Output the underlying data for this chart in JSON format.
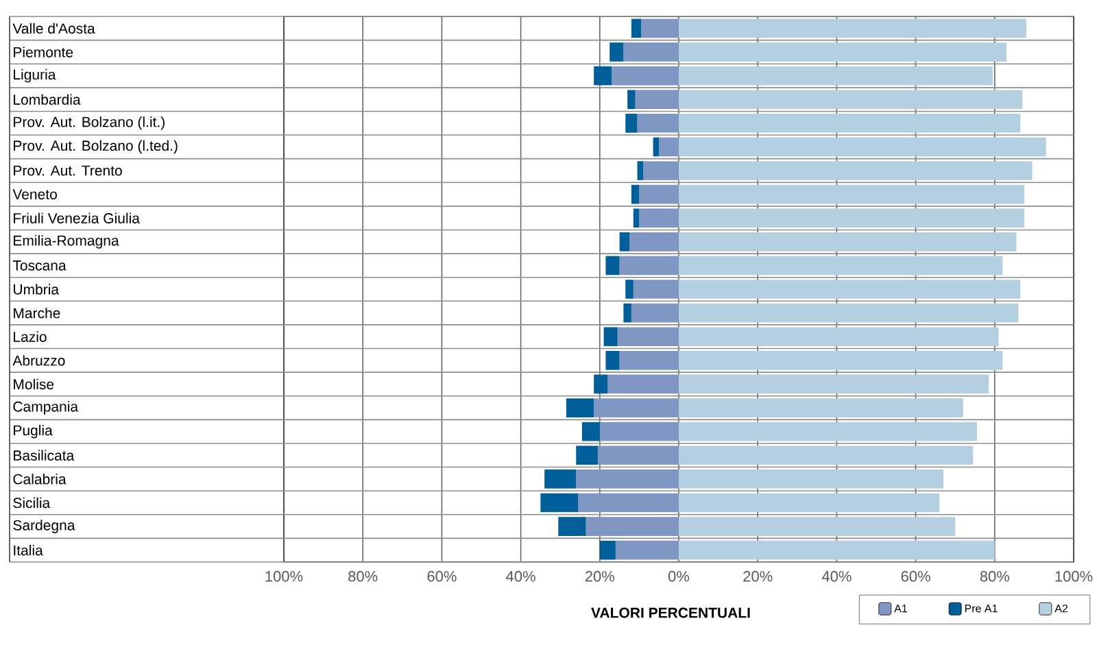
{
  "chart_data": {
    "type": "bar",
    "orientation": "horizontal",
    "stacked": true,
    "xlabel": "VALORI PERCENTUALI",
    "categories": [
      "Valle d'Aosta",
      "Piemonte",
      "Liguria",
      "Lombardia",
      "Prov. Aut. Bolzano (l.it.)",
      "Prov. Aut. Bolzano (l.ted.)",
      "Prov. Aut. Trento",
      "Veneto",
      "Friuli Venezia Giulia",
      "Emilia-Romagna",
      "Toscana",
      "Umbria",
      "Marche",
      "Lazio",
      "Abruzzo",
      "Molise",
      "Campania",
      "Puglia",
      "Basilicata",
      "Calabria",
      "Sicilia",
      "Sardegna",
      "Italia"
    ],
    "series": [
      {
        "name": "A1",
        "color": "#7f97c2",
        "values": [
          -9.5,
          -14,
          -17,
          -11,
          -10.5,
          -5,
          -9,
          -10,
          -10,
          -12.5,
          -15,
          -11.5,
          -12,
          -15.5,
          -15,
          -18,
          -21.5,
          -20,
          -20.5,
          -26,
          -25.5,
          -23.5,
          -16
        ]
      },
      {
        "name": "Pre A1",
        "color": "#005f98",
        "values": [
          -2.5,
          -3.5,
          -4.5,
          -2,
          -3,
          -1.5,
          -1.5,
          -2,
          -1.5,
          -2.5,
          -3.5,
          -2,
          -2,
          -3.5,
          -3.5,
          -3.5,
          -7,
          -4.5,
          -5.5,
          -8,
          -9.5,
          -7,
          -4
        ]
      },
      {
        "name": "A2",
        "color": "#b3cfe0",
        "values": [
          88,
          83,
          79.5,
          87,
          86.5,
          93,
          89.5,
          87.5,
          87.5,
          85.5,
          82,
          86.5,
          86,
          81,
          82,
          78.5,
          72,
          75.5,
          74.5,
          67,
          66,
          70,
          80
        ]
      }
    ],
    "xlim": [
      -100,
      100
    ],
    "xticks": [
      {
        "value": -100,
        "label": "100%"
      },
      {
        "value": -80,
        "label": "80%"
      },
      {
        "value": -60,
        "label": "60%"
      },
      {
        "value": -40,
        "label": "40%"
      },
      {
        "value": -20,
        "label": "20%"
      },
      {
        "value": 0,
        "label": "0%"
      },
      {
        "value": 20,
        "label": "20%"
      },
      {
        "value": 40,
        "label": "40%"
      },
      {
        "value": 60,
        "label": "60%"
      },
      {
        "value": 80,
        "label": "80%"
      },
      {
        "value": 100,
        "label": "100%"
      }
    ],
    "grid": "x",
    "legend": "bottom right"
  }
}
